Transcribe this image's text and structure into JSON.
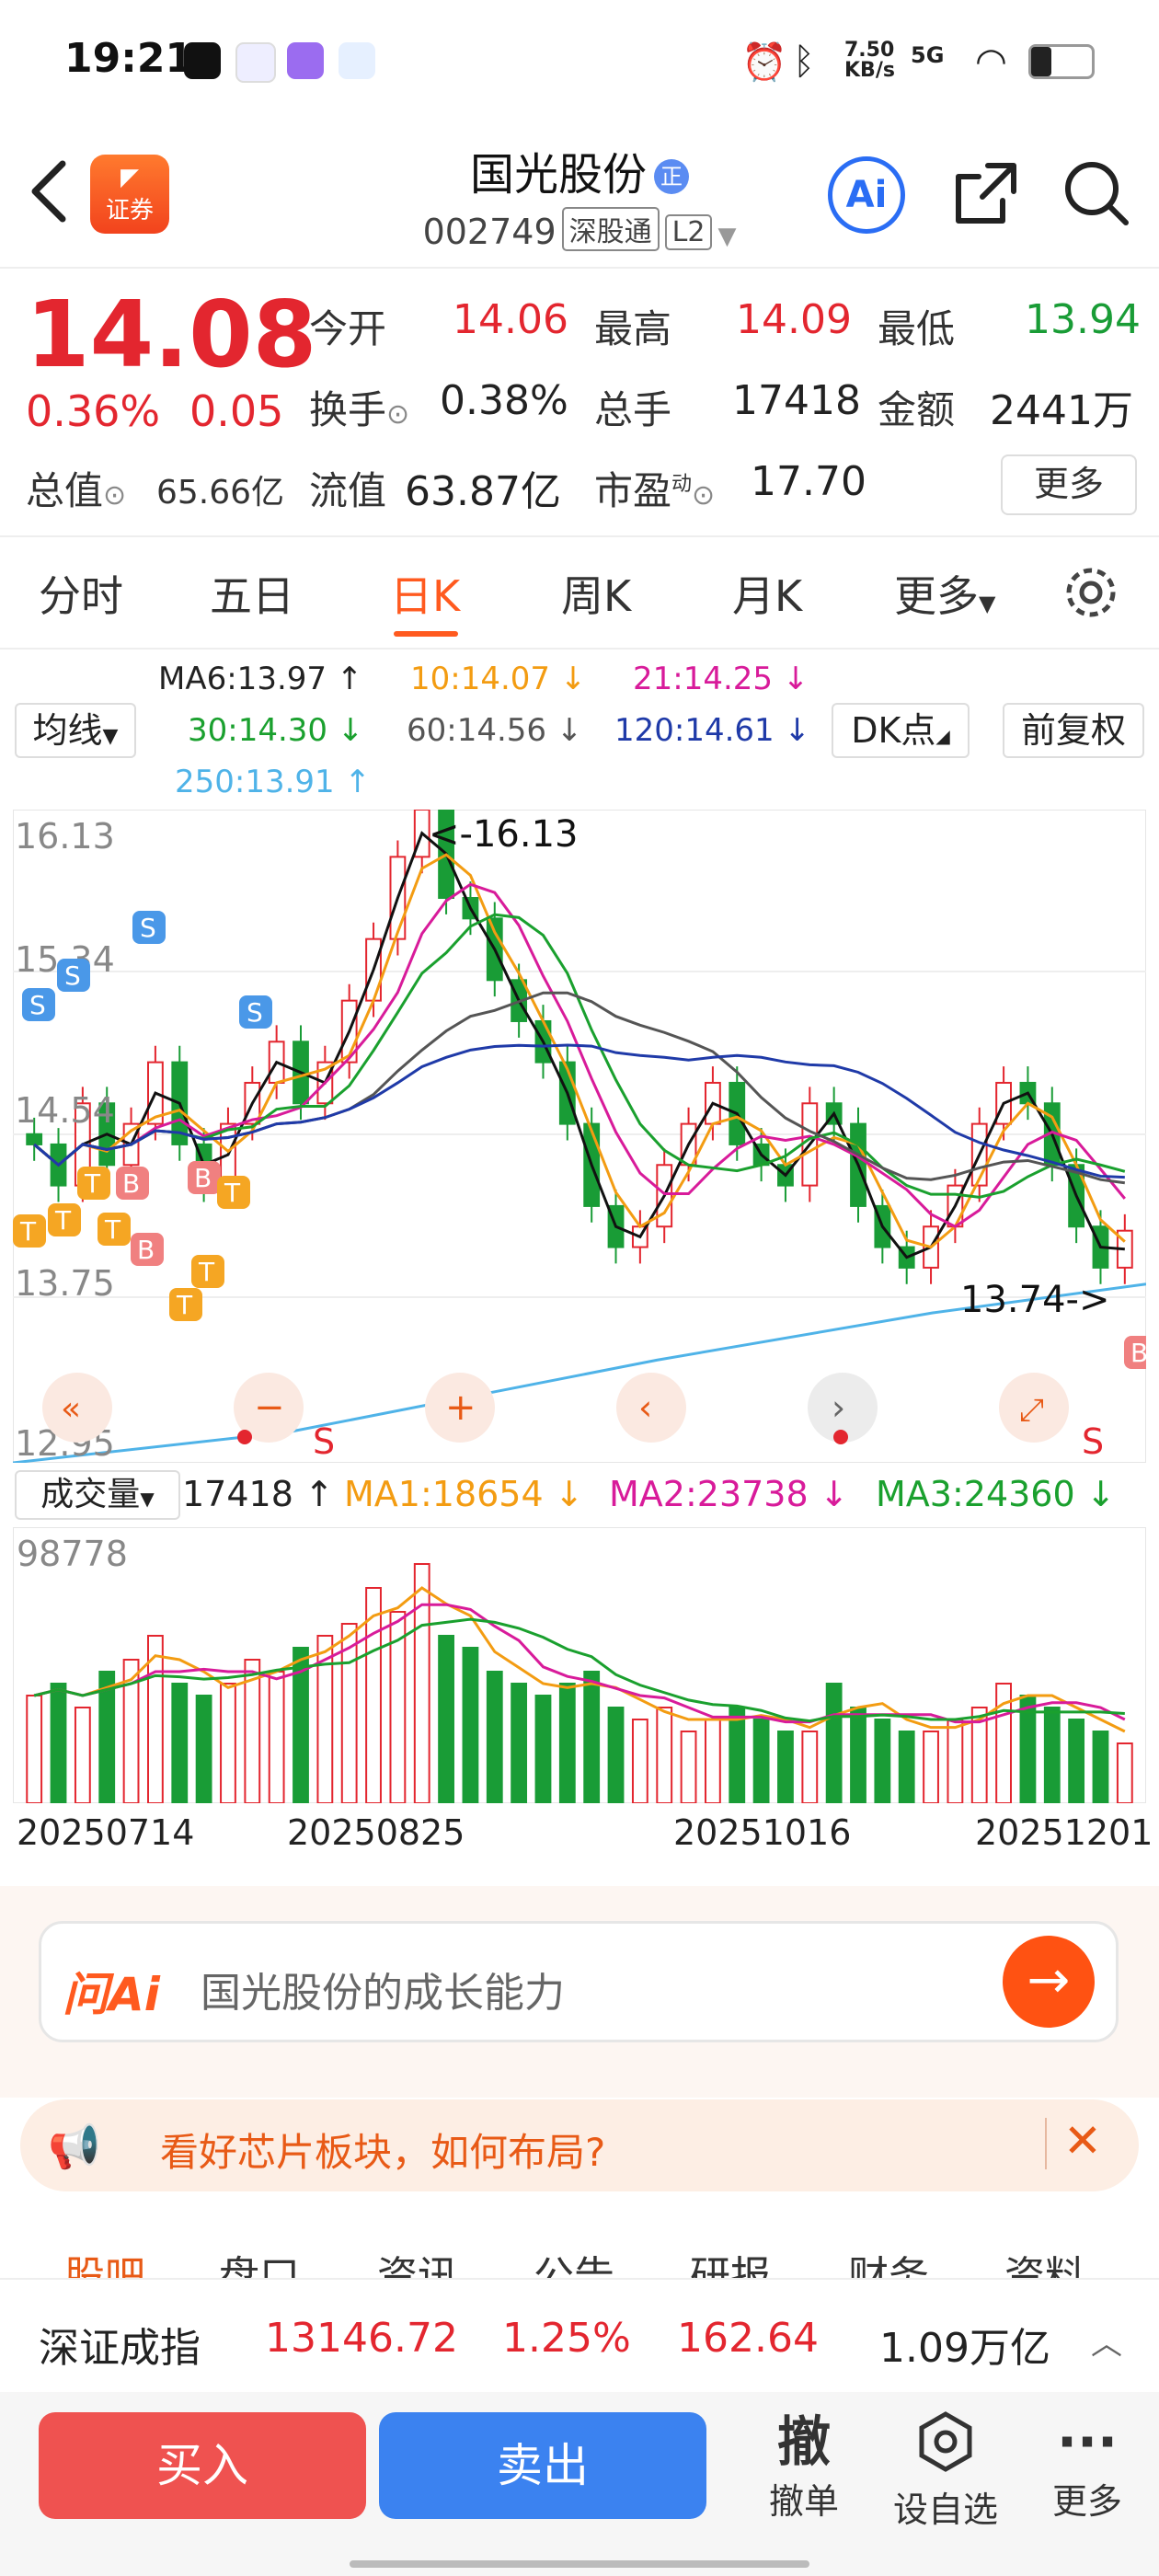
{
  "status": {
    "time": "19:21",
    "net_speed_top": "7.50",
    "net_speed_unit": "KB/s",
    "signal": "5G"
  },
  "header": {
    "broker_logo": "证券",
    "title": "国光股份",
    "title_badge": "正",
    "code": "002749",
    "tag1": "深股通",
    "tag2": "L2",
    "ai_label": "Ai"
  },
  "quote": {
    "price": "14.08",
    "pct": "0.36%",
    "change": "0.05",
    "open_label": "今开",
    "open": "14.06",
    "high_label": "最高",
    "high": "14.09",
    "low_label": "最低",
    "low": "13.94",
    "turnover_label": "换手",
    "turnover": "0.38%",
    "volume_label": "总手",
    "volume": "17418",
    "amount_label": "金额",
    "amount": "2441万",
    "mktcap_label": "总值",
    "mktcap": "65.66亿",
    "float_label": "流值",
    "float": "63.87亿",
    "pe_label": "市盈",
    "pe_sup": "动",
    "pe": "17.70",
    "more": "更多"
  },
  "tabs": [
    "分时",
    "五日",
    "日K",
    "周K",
    "月K",
    "更多"
  ],
  "active_tab": "日K",
  "ma": {
    "selector": "均线",
    "ma6": "MA6:13.97 ↑",
    "ma10": "10:14.07 ↓",
    "ma21": "21:14.25 ↓",
    "ma30": "30:14.30 ↓",
    "ma60": "60:14.56 ↓",
    "ma120": "120:14.61 ↓",
    "ma250": "250:13.91 ↑",
    "dk": "DK点",
    "adjust": "前复权"
  },
  "kline": {
    "y_top": "16.13",
    "y_mid1": "15.34",
    "y_mid2": "14.54",
    "y_mid3": "13.75",
    "y_bottom": "12.95",
    "high_marker": "<-16.13",
    "low_marker": "13.74->"
  },
  "chart_data": {
    "type": "candlestick",
    "price_axis": {
      "ticks": [
        16.13,
        15.34,
        14.54,
        13.75,
        12.95
      ]
    },
    "close_estimates": [
      14.5,
      14.3,
      14.7,
      14.4,
      14.6,
      14.9,
      14.5,
      14.3,
      14.6,
      14.8,
      15.0,
      14.7,
      14.9,
      15.2,
      15.5,
      15.9,
      16.13,
      15.7,
      15.6,
      15.3,
      15.1,
      14.9,
      14.6,
      14.2,
      14.0,
      14.1,
      14.4,
      14.6,
      14.8,
      14.5,
      14.4,
      14.3,
      14.7,
      14.6,
      14.2,
      14.0,
      13.9,
      14.1,
      14.3,
      14.6,
      14.8,
      14.7,
      14.4,
      14.1,
      13.9,
      14.08
    ],
    "volume_label": "成交量",
    "volume_value": "17418 ↑",
    "vol_ma1": "MA1:18654 ↓",
    "vol_ma2": "MA2:23738 ↓",
    "vol_ma3": "MA3:24360 ↓",
    "vol_max": "98778",
    "dates": [
      "20250714",
      "20250825",
      "20251016",
      "20251201"
    ]
  },
  "markers": {
    "s": "S",
    "b": "B",
    "t": "T"
  },
  "ai": {
    "icon": "问Ai",
    "placeholder": "国光股份的成长能力"
  },
  "notice": {
    "text": "看好芯片板块，如何布局?"
  },
  "subtabs": [
    "股吧",
    "盘口",
    "资讯",
    "公告",
    "研报",
    "财务",
    "资料"
  ],
  "index": {
    "name": "深证成指",
    "value": "13146.72",
    "pct": "1.25%",
    "change": "162.64",
    "amount": "1.09万亿"
  },
  "bottom": {
    "buy": "买入",
    "sell": "卖出",
    "cancel_icon": "撤",
    "cancel": "撤单",
    "watch": "设自选",
    "more": "更多"
  },
  "colors": {
    "up": "#e3262f",
    "down": "#199c36",
    "accent": "#ff5a1f",
    "buy": "#ef5250",
    "sell": "#3b82f0"
  }
}
